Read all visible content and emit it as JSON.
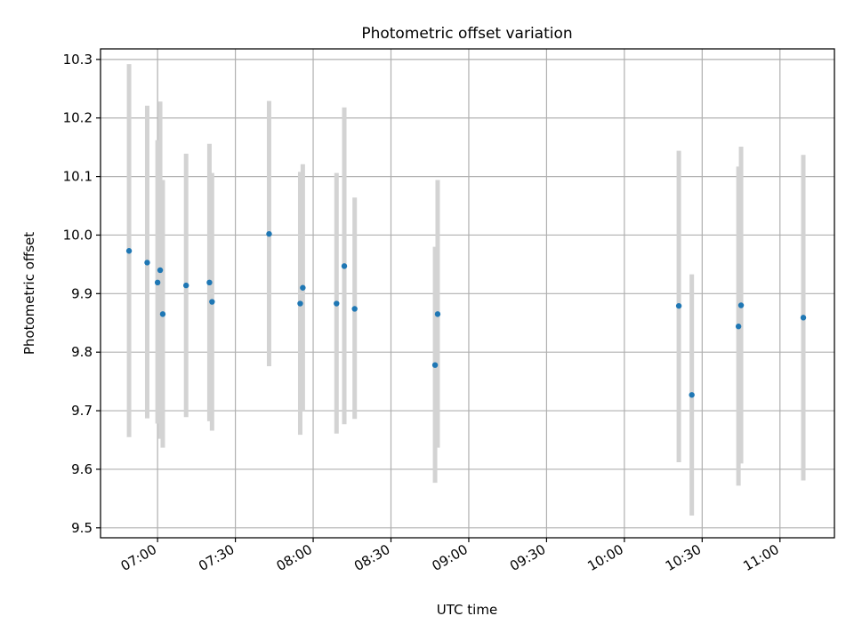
{
  "chart_data": {
    "type": "scatter",
    "title": "Photometric offset variation",
    "xlabel": "UTC time",
    "ylabel": "Photometric offset",
    "xlim": [
      "06:38",
      "11:21"
    ],
    "ylim": [
      9.483,
      10.318
    ],
    "x_ticks": [
      "07:00",
      "07:30",
      "08:00",
      "08:30",
      "09:00",
      "09:30",
      "10:00",
      "10:30",
      "11:00"
    ],
    "y_ticks": [
      "9.5",
      "9.6",
      "9.7",
      "9.8",
      "9.9",
      "10.0",
      "10.1",
      "10.2",
      "10.3"
    ],
    "grid": true,
    "colors": {
      "points": "#1f77b4",
      "error_bars": "#d3d3d3",
      "grid": "#b0b0b0"
    },
    "points": [
      {
        "time": "06:49",
        "value": 9.973,
        "low": 9.655,
        "high": 10.292
      },
      {
        "time": "06:56",
        "value": 9.953,
        "low": 9.687,
        "high": 10.221
      },
      {
        "time": "07:00",
        "value": 9.919,
        "low": 9.678,
        "high": 10.162
      },
      {
        "time": "07:01",
        "value": 9.94,
        "low": 9.652,
        "high": 10.228
      },
      {
        "time": "07:02",
        "value": 9.865,
        "low": 9.637,
        "high": 10.094
      },
      {
        "time": "07:11",
        "value": 9.914,
        "low": 9.689,
        "high": 10.139
      },
      {
        "time": "07:20",
        "value": 9.919,
        "low": 9.682,
        "high": 10.156
      },
      {
        "time": "07:21",
        "value": 9.886,
        "low": 9.666,
        "high": 10.106
      },
      {
        "time": "07:43",
        "value": 10.002,
        "low": 9.776,
        "high": 10.229
      },
      {
        "time": "07:55",
        "value": 9.883,
        "low": 9.659,
        "high": 10.108
      },
      {
        "time": "07:56",
        "value": 9.91,
        "low": 9.7,
        "high": 10.121
      },
      {
        "time": "08:09",
        "value": 9.883,
        "low": 9.661,
        "high": 10.106
      },
      {
        "time": "08:12",
        "value": 9.947,
        "low": 9.677,
        "high": 10.218
      },
      {
        "time": "08:16",
        "value": 9.874,
        "low": 9.686,
        "high": 10.064
      },
      {
        "time": "08:47",
        "value": 9.778,
        "low": 9.577,
        "high": 9.98
      },
      {
        "time": "08:48",
        "value": 9.865,
        "low": 9.637,
        "high": 10.094
      },
      {
        "time": "10:21",
        "value": 9.879,
        "low": 9.612,
        "high": 10.144
      },
      {
        "time": "10:26",
        "value": 9.727,
        "low": 9.521,
        "high": 9.933
      },
      {
        "time": "10:44",
        "value": 9.844,
        "low": 9.572,
        "high": 10.117
      },
      {
        "time": "10:45",
        "value": 9.88,
        "low": 9.61,
        "high": 10.151
      },
      {
        "time": "11:09",
        "value": 9.859,
        "low": 9.581,
        "high": 10.137
      }
    ]
  }
}
